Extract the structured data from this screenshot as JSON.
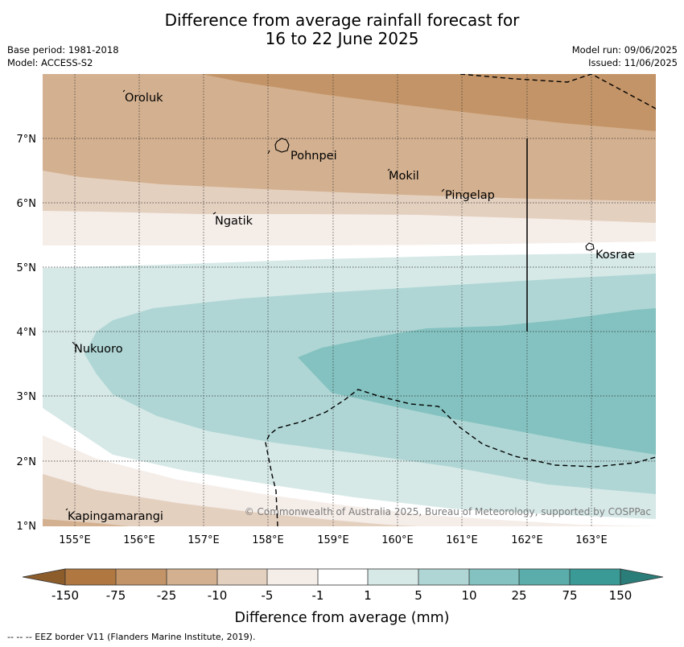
{
  "title_line1": "Difference from average rainfall forecast for",
  "title_line2": "16 to 22 June 2025",
  "meta": {
    "base_period": "Base period: 1981-2018",
    "model": "Model: ACCESS-S2",
    "model_run": "Model run: 09/06/2025",
    "issued": "Issued: 11/06/2025"
  },
  "x_ticks": [
    "155°E",
    "156°E",
    "157°E",
    "158°E",
    "159°E",
    "160°E",
    "161°E",
    "162°E",
    "163°E"
  ],
  "y_ticks": [
    "1°N",
    "2°N",
    "3°N",
    "4°N",
    "5°N",
    "6°N",
    "7°N"
  ],
  "places": [
    "Oroluk",
    "Pohnpei",
    "Mokil",
    "Pingelap",
    "Ngatik",
    "Kosrae",
    "Nukuoro",
    "Kapingamarangi"
  ],
  "copyright": "© Commonwealth of Australia 2025, Bureau of Meteorology, supported by COSPPac",
  "colorbar": {
    "ticks": [
      "-150",
      "-75",
      "-25",
      "-10",
      "-5",
      "-1",
      "1",
      "5",
      "10",
      "25",
      "75",
      "150"
    ],
    "colors": [
      "#8c5c2b",
      "#b07840",
      "#c39467",
      "#d3b08f",
      "#e4d0bf",
      "#f5ede8",
      "#ffffff",
      "#d6e9e7",
      "#afd6d5",
      "#83c2c0",
      "#5aadaa",
      "#3a9a96",
      "#2a7d79"
    ],
    "label": "Difference from average (mm)"
  },
  "footnote": "--  --  -- EEZ border V11 (Flanders Marine Institute, 2019)."
}
